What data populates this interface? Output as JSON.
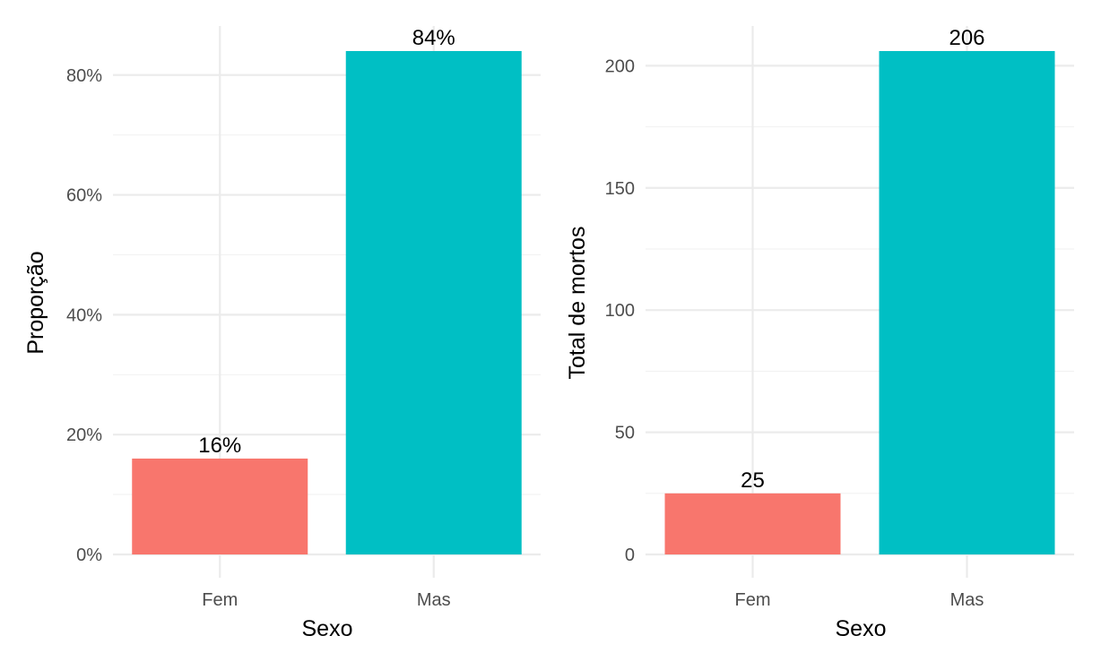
{
  "chart_data": [
    {
      "type": "bar",
      "categories": [
        "Fem",
        "Mas"
      ],
      "values": [
        16,
        84
      ],
      "data_labels": [
        "16%",
        "84%"
      ],
      "colors": [
        "#F8766D",
        "#00BFC4"
      ],
      "xlabel": "Sexo",
      "ylabel": "Proporção",
      "ylim": [
        0,
        84
      ],
      "yticks": [
        0,
        20,
        40,
        60,
        80
      ],
      "ytick_labels": [
        "0%",
        "20%",
        "40%",
        "60%",
        "80%"
      ],
      "grid": true,
      "legend": "none"
    },
    {
      "type": "bar",
      "categories": [
        "Fem",
        "Mas"
      ],
      "values": [
        25,
        206
      ],
      "data_labels": [
        "25",
        "206"
      ],
      "colors": [
        "#F8766D",
        "#00BFC4"
      ],
      "xlabel": "Sexo",
      "ylabel": "Total de mortos",
      "ylim": [
        0,
        206
      ],
      "yticks": [
        0,
        50,
        100,
        150,
        200
      ],
      "ytick_labels": [
        "0",
        "50",
        "100",
        "150",
        "200"
      ],
      "grid": true,
      "legend": "none"
    }
  ]
}
